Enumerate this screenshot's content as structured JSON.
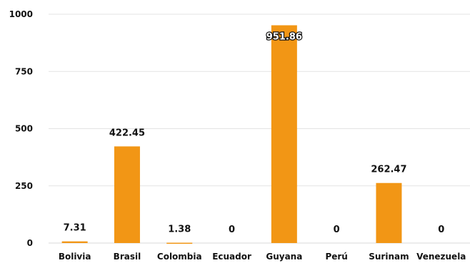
{
  "chart_data": {
    "type": "bar",
    "categories": [
      "Bolivia",
      "Brasil",
      "Colombia",
      "Ecuador",
      "Guyana",
      "Perú",
      "Surinam",
      "Venezuela"
    ],
    "values": [
      7.31,
      422.45,
      1.38,
      0,
      951.86,
      0,
      262.47,
      0
    ],
    "data_labels": [
      "7.31",
      "422.45",
      "1.38",
      "0",
      "951.86",
      "0",
      "262.47",
      "0"
    ],
    "yticks": [
      0,
      250,
      500,
      750,
      1000
    ],
    "ylim": [
      0,
      1000
    ],
    "grid": true,
    "bar_color": "#F29615",
    "title": "",
    "xlabel": "",
    "ylabel": ""
  }
}
